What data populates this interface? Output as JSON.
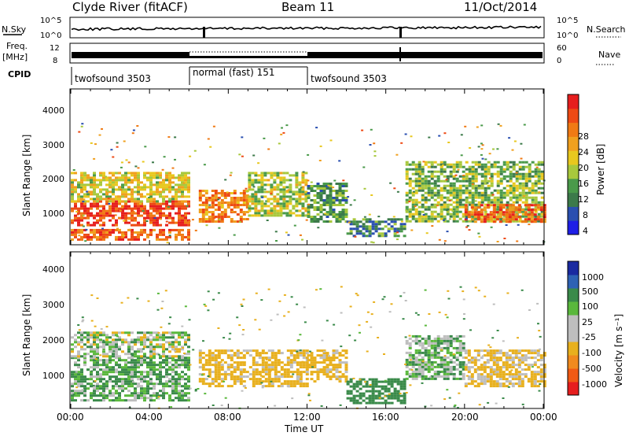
{
  "header": {
    "station": "Clyde River (fitACF)",
    "beam": "Beam 11",
    "date": "11/Oct/2014"
  },
  "noise_panel": {
    "left_label": "N.Sky",
    "left_ticks": [
      "10^5",
      "10^0"
    ],
    "right_label": "N.Search",
    "right_ticks": [
      "10^5",
      "10^0"
    ]
  },
  "freq_panel": {
    "left_label_1": "Freq.",
    "left_label_2": "[MHz]",
    "left_ticks": [
      "12",
      "8"
    ],
    "right_label": "Nave",
    "right_ticks": [
      "60",
      "0"
    ]
  },
  "cpid": {
    "label": "CPID",
    "segments": [
      {
        "name": "twofsound 3503",
        "start_hour": 0,
        "end_hour": 6
      },
      {
        "name": "normal (fast) 151",
        "start_hour": 6,
        "end_hour": 12
      },
      {
        "name": "twofsound 3503",
        "start_hour": 12,
        "end_hour": 24
      }
    ]
  },
  "x_axis": {
    "label": "Time UT",
    "ticks": [
      "00:00",
      "04:00",
      "08:00",
      "12:00",
      "16:00",
      "20:00",
      "00:00"
    ]
  },
  "power_panel": {
    "ylabel": "Slant Range [km]",
    "yticks": [
      "4000",
      "3000",
      "2000",
      "1000"
    ],
    "colorbar_label": "Power [dB]",
    "colorbar_ticks": [
      "28",
      "24",
      "20",
      "16",
      "12",
      "8",
      "4"
    ],
    "colors": [
      "#1e1ee6",
      "#2a4fb0",
      "#3c7a4a",
      "#4a9a4a",
      "#a8c83c",
      "#e8c81e",
      "#f0a01e",
      "#f07a14",
      "#ee4a14",
      "#e61e1e"
    ]
  },
  "velocity_panel": {
    "ylabel": "Slant Range [km]",
    "yticks": [
      "4000",
      "3000",
      "2000",
      "1000"
    ],
    "colorbar_label": "Velocity [m s⁻¹]",
    "colorbar_ticks": [
      "1000",
      "500",
      "100",
      "25",
      "-25",
      "-100",
      "-500",
      "-1000"
    ],
    "colors": [
      "#1a2aa0",
      "#2e62b4",
      "#3a8a4a",
      "#5ab83c",
      "#bebebe",
      "#bebebe",
      "#e8b01e",
      "#f08a1e",
      "#f05a14",
      "#e61e1e"
    ]
  },
  "chart_data": {
    "type": "heatmap",
    "x_range_hours": [
      0,
      24
    ],
    "y_range_km": [
      180,
      4500
    ],
    "grid": false,
    "power_bands": [
      {
        "t0": 0,
        "t1": 6,
        "r0": 700,
        "r1": 1400,
        "power_db": 28
      },
      {
        "t0": 0,
        "t1": 6,
        "r0": 1400,
        "r1": 2200,
        "power_db": 18
      },
      {
        "t0": 0,
        "t1": 6,
        "r0": 300,
        "r1": 600,
        "power_db": 26
      },
      {
        "t0": 6.5,
        "t1": 9,
        "r0": 800,
        "r1": 1700,
        "power_db": 24
      },
      {
        "t0": 9,
        "t1": 12,
        "r0": 1000,
        "r1": 2200,
        "power_db": 16
      },
      {
        "t0": 12,
        "t1": 14,
        "r0": 800,
        "r1": 1900,
        "power_db": 12
      },
      {
        "t0": 14,
        "t1": 17,
        "r0": 400,
        "r1": 900,
        "power_db": 10
      },
      {
        "t0": 17,
        "t1": 24,
        "r0": 800,
        "r1": 2500,
        "power_db": 14
      },
      {
        "t0": 20,
        "t1": 24,
        "r0": 800,
        "r1": 1300,
        "power_db": 26
      }
    ],
    "velocity_bands": [
      {
        "t0": 0,
        "t1": 6,
        "r0": 400,
        "r1": 1600,
        "velocity_ms": 100
      },
      {
        "t0": 0,
        "t1": 6,
        "r0": 1600,
        "r1": 2300,
        "velocity_ms": 0
      },
      {
        "t0": 6.5,
        "t1": 12,
        "r0": 800,
        "r1": 1800,
        "velocity_ms": -200
      },
      {
        "t0": 12,
        "t1": 14,
        "r0": 900,
        "r1": 1800,
        "velocity_ms": -200
      },
      {
        "t0": 14,
        "t1": 17,
        "r0": 300,
        "r1": 1000,
        "velocity_ms": 300
      },
      {
        "t0": 17,
        "t1": 20,
        "r0": 1000,
        "r1": 2200,
        "velocity_ms": 50
      },
      {
        "t0": 20,
        "t1": 24,
        "r0": 800,
        "r1": 1800,
        "velocity_ms": -150
      }
    ]
  }
}
